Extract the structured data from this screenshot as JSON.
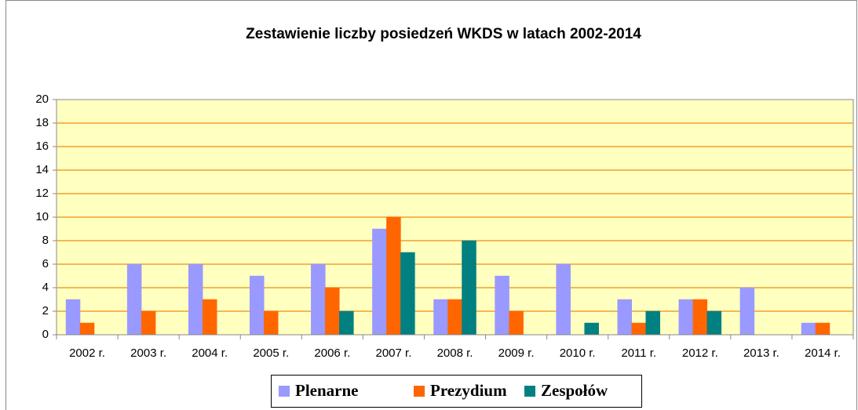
{
  "chart_data": {
    "type": "bar",
    "title": "Zestawienie liczby posiedzeń WKDS w latach 2002-2014",
    "categories": [
      "2002 r.",
      "2003 r.",
      "2004 r.",
      "2005 r.",
      "2006 r.",
      "2007 r.",
      "2008 r.",
      "2009 r.",
      "2010 r.",
      "2011 r.",
      "2012 r.",
      "2013 r.",
      "2014 r."
    ],
    "series": [
      {
        "name": "Plenarne",
        "color": "#9999ff",
        "values": [
          3,
          6,
          6,
          5,
          6,
          9,
          3,
          5,
          6,
          3,
          3,
          4,
          1
        ]
      },
      {
        "name": "Prezydium",
        "color": "#ff6600",
        "values": [
          1,
          2,
          3,
          2,
          4,
          10,
          3,
          2,
          0,
          1,
          3,
          0,
          1
        ]
      },
      {
        "name": "Zespołów",
        "color": "#008080",
        "values": [
          0,
          0,
          0,
          0,
          2,
          7,
          8,
          0,
          1,
          2,
          2,
          0,
          0
        ]
      }
    ],
    "ylim": [
      0,
      20
    ],
    "yticks": [
      0,
      2,
      4,
      6,
      8,
      10,
      12,
      14,
      16,
      18,
      20
    ],
    "grid": true,
    "legend": "bottom"
  }
}
